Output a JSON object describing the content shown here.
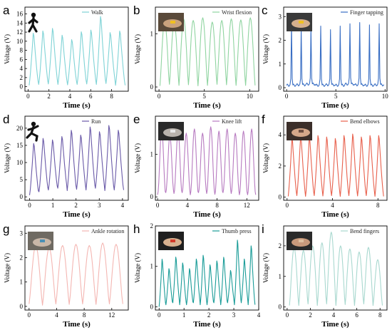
{
  "chart_data": [
    {
      "letter": "a",
      "type": "line",
      "legend": "Walk",
      "color": "#7fd3d6",
      "xlabel": "Time (s)",
      "ylabel": "Voltage (V)",
      "xlim": [
        -0.3,
        9.6
      ],
      "ylim": [
        -1,
        17.5
      ],
      "xticks": [
        0,
        2,
        4,
        6,
        8
      ],
      "yticks": [
        0,
        2,
        4,
        6,
        8,
        10,
        12,
        14,
        16
      ],
      "peaks": [
        12.5,
        13.0,
        13.6,
        12.0,
        11.0,
        12.8,
        13.2,
        16.4,
        12.6,
        13.0
      ],
      "troughs": [
        0.3,
        0.5,
        0.6,
        0.5,
        0.4,
        0.5,
        0.6,
        0.5,
        0.7,
        0.3
      ],
      "x_start": 0.1,
      "x_end": 9.3,
      "shape": "peaked",
      "inset": "walker-icon"
    },
    {
      "letter": "b",
      "type": "line",
      "legend": "Wrist flexion",
      "color": "#8fd4a0",
      "xlabel": "Time (s)",
      "ylabel": "Voltage (V)",
      "xlim": [
        -0.4,
        11.0
      ],
      "ylim": [
        -0.08,
        1.5
      ],
      "xticks": [
        0,
        5,
        10
      ],
      "yticks": [
        0,
        1
      ],
      "peaks": [
        1.25,
        1.22,
        1.28,
        1.25,
        1.3,
        1.22,
        1.25,
        1.28,
        1.26,
        1.3
      ],
      "troughs": [
        0.02,
        0.05,
        0.03,
        0.04,
        0.02,
        0.03,
        0.05,
        0.04,
        0.03,
        0.03
      ],
      "x_start": 0.1,
      "x_end": 10.6,
      "shape": "smooth",
      "inset": "wrist-photo"
    },
    {
      "letter": "c",
      "type": "line",
      "legend": "Finger tapping",
      "color": "#3a6fc4",
      "xlabel": "Time (s)",
      "ylabel": "Voltage (V)",
      "xlim": [
        -0.3,
        10.2
      ],
      "ylim": [
        -0.15,
        3.4
      ],
      "xticks": [
        0,
        5,
        10
      ],
      "yticks": [
        0,
        1,
        2,
        3
      ],
      "peaks": [
        2.7,
        2.5,
        2.55,
        2.6,
        2.45,
        2.6,
        2.7,
        2.75,
        2.65,
        2.7
      ],
      "troughs": [
        0.1,
        0.12,
        0.15,
        0.1,
        0.12,
        0.1,
        0.15,
        0.12,
        0.1,
        0.12
      ],
      "x_start": 0.0,
      "x_end": 9.9,
      "shape": "spike",
      "inset": "finger-photo"
    },
    {
      "letter": "d",
      "type": "line",
      "legend": "Run",
      "color": "#6a5aa8",
      "xlabel": "Time (s)",
      "ylabel": "Voltage (V)",
      "xlim": [
        -0.2,
        4.25
      ],
      "ylim": [
        -1,
        23.5
      ],
      "xticks": [
        0,
        1,
        2,
        3,
        4
      ],
      "yticks": [
        0,
        5,
        10,
        15,
        20
      ],
      "peaks": [
        16.5,
        18.0,
        17.5,
        18.5,
        20.5,
        19.0,
        21.5,
        20.0,
        22.0,
        20.5
      ],
      "troughs": [
        0.5,
        1.5,
        2.0,
        2.5,
        1.8,
        2.2,
        2.0,
        2.5,
        1.8,
        2.0
      ],
      "x_start": 0.0,
      "x_end": 4.05,
      "shape": "peaked",
      "inset": "runner-icon"
    },
    {
      "letter": "e",
      "type": "line",
      "legend": "Knee lift",
      "color": "#b77ac0",
      "xlabel": "Time (s)",
      "ylabel": "Voltage (V)",
      "xlim": [
        -0.3,
        13.6
      ],
      "ylim": [
        -0.08,
        1.9
      ],
      "xticks": [
        0,
        4,
        8,
        12
      ],
      "yticks": [
        0,
        1
      ],
      "peaks": [
        1.6,
        1.45,
        1.55,
        1.5,
        1.6,
        1.5,
        1.65,
        1.55,
        1.6,
        1.5,
        1.55,
        1.6
      ],
      "troughs": [
        0.05,
        0.1,
        0.08,
        0.1,
        0.05,
        0.1,
        0.08,
        0.06,
        0.1,
        0.08,
        0.05,
        0.05
      ],
      "x_start": 0.0,
      "x_end": 13.2,
      "shape": "double",
      "inset": "knee-photo"
    },
    {
      "letter": "f",
      "type": "line",
      "legend": "Bend elbows",
      "color": "#e8604c",
      "xlabel": "Time (s)",
      "ylabel": "Voltage (V)",
      "xlim": [
        -0.3,
        8.8
      ],
      "ylim": [
        -0.2,
        5.2
      ],
      "xticks": [
        0,
        4,
        8
      ],
      "yticks": [
        0,
        2,
        4
      ],
      "peaks": [
        4.0,
        4.2,
        4.1,
        4.2,
        4.1,
        4.0,
        4.2,
        4.3,
        4.1,
        4.2,
        4.2
      ],
      "troughs": [
        0.05,
        0.1,
        0.05,
        0.1,
        0.08,
        0.1,
        0.05,
        0.1,
        0.08,
        0.1,
        0.05
      ],
      "x_start": 0.1,
      "x_end": 8.5,
      "shape": "peaked",
      "inset": "elbow-photo"
    },
    {
      "letter": "g",
      "type": "line",
      "legend": "Ankle rotation",
      "color": "#f4b6b2",
      "xlabel": "Time (s)",
      "ylabel": "Voltage (V)",
      "xlim": [
        -0.6,
        14.4
      ],
      "ylim": [
        -0.15,
        3.3
      ],
      "xticks": [
        0,
        4,
        8,
        12
      ],
      "yticks": [
        0,
        1,
        2,
        3
      ],
      "peaks": [
        2.5,
        2.4,
        2.5,
        2.55,
        2.5,
        2.6,
        2.55
      ],
      "troughs": [
        0.1,
        0.05,
        0.1,
        0.08,
        0.1,
        0.08,
        0.1
      ],
      "x_start": 0.0,
      "x_end": 13.6,
      "shape": "smooth",
      "inset": "ankle-photo"
    },
    {
      "letter": "h",
      "type": "line",
      "legend": "Thumb press",
      "color": "#1a9c98",
      "xlabel": "Time (s)",
      "ylabel": "Voltage (V)",
      "xlim": [
        -0.15,
        4.0
      ],
      "ylim": [
        -0.08,
        2.0
      ],
      "xticks": [
        0,
        1,
        2,
        3,
        4
      ],
      "yticks": [
        0,
        1,
        2
      ],
      "peaks": [
        1.25,
        1.0,
        1.3,
        1.15,
        1.0,
        1.25,
        1.35,
        1.1,
        1.2,
        1.3,
        0.95,
        1.75,
        1.25,
        1.6
      ],
      "troughs": [
        0.0,
        0.05,
        0.1,
        0.05,
        0.05,
        0.1,
        0.05,
        0.05,
        0.1,
        0.05,
        0.1,
        0.05,
        0.1,
        0.05
      ],
      "x_start": 0.0,
      "x_end": 3.85,
      "shape": "peaked",
      "inset": "thumb-photo"
    },
    {
      "letter": "i",
      "type": "line",
      "legend": "Bend fingers",
      "color": "#a8d8cf",
      "xlabel": "Time (s)",
      "ylabel": "Voltage (V)",
      "xlim": [
        -0.3,
        8.6
      ],
      "ylim": [
        -0.1,
        2.65
      ],
      "xticks": [
        0,
        2,
        4,
        6,
        8
      ],
      "yticks": [
        0,
        1,
        2
      ],
      "peaks": [
        1.95,
        1.85,
        2.0,
        2.1,
        2.45,
        2.0,
        1.9,
        1.8,
        1.95,
        1.55
      ],
      "troughs": [
        0.05,
        0.05,
        0.1,
        0.05,
        0.1,
        0.05,
        0.08,
        0.05,
        0.1,
        0.05
      ],
      "x_start": 0.2,
      "x_end": 8.2,
      "shape": "smooth",
      "inset": "hand-photo"
    }
  ]
}
